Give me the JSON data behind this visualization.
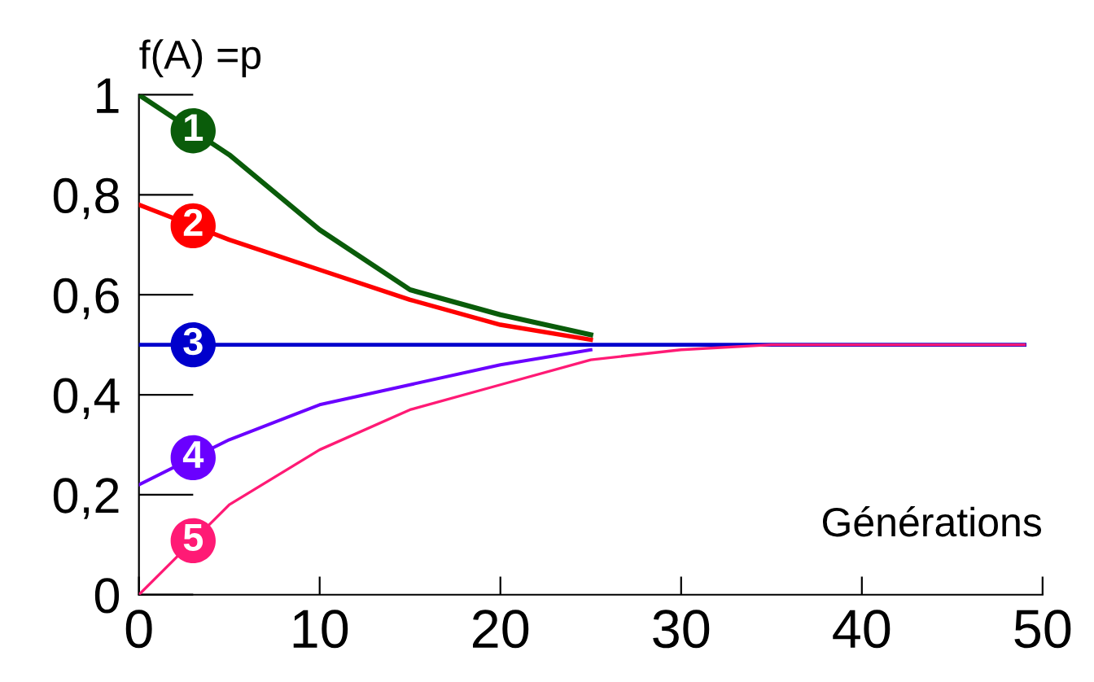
{
  "chart_data": {
    "type": "line",
    "ylabel": "f(A) =p",
    "xlabel": "Générations",
    "xlim": [
      0,
      50
    ],
    "ylim": [
      0,
      1
    ],
    "xticks": [
      0,
      10,
      20,
      30,
      40,
      50
    ],
    "yticks": [
      0,
      {
        "value": 0.2,
        "label": "0,2"
      },
      {
        "value": 0.4,
        "label": "0,4"
      },
      {
        "value": 0.6,
        "label": "0,6"
      },
      {
        "value": 0.8,
        "label": "0,8"
      },
      1
    ],
    "grid": false,
    "legend": false,
    "marker": "none",
    "line_style": "solid",
    "series": [
      {
        "name": "1",
        "color": "#0a5c0a",
        "x": [
          0,
          5,
          10,
          15,
          20,
          25
        ],
        "values": [
          1.0,
          0.88,
          0.73,
          0.61,
          0.56,
          0.52
        ]
      },
      {
        "name": "2",
        "color": "#ff0000",
        "x": [
          0,
          5,
          10,
          15,
          20,
          25
        ],
        "values": [
          0.78,
          0.71,
          0.65,
          0.59,
          0.54,
          0.51
        ]
      },
      {
        "name": "3",
        "color": "#0000cc",
        "x": [
          0,
          49
        ],
        "values": [
          0.5,
          0.5
        ]
      },
      {
        "name": "4",
        "color": "#6a00ff",
        "x": [
          0,
          5,
          10,
          15,
          20,
          25
        ],
        "values": [
          0.22,
          0.31,
          0.38,
          0.42,
          0.46,
          0.49
        ]
      },
      {
        "name": "5",
        "color": "#ff1a75",
        "x": [
          0,
          5,
          10,
          15,
          20,
          25,
          30,
          35,
          40,
          49
        ],
        "values": [
          0.0,
          0.18,
          0.29,
          0.37,
          0.42,
          0.47,
          0.49,
          0.5,
          0.5,
          0.5
        ]
      }
    ]
  }
}
